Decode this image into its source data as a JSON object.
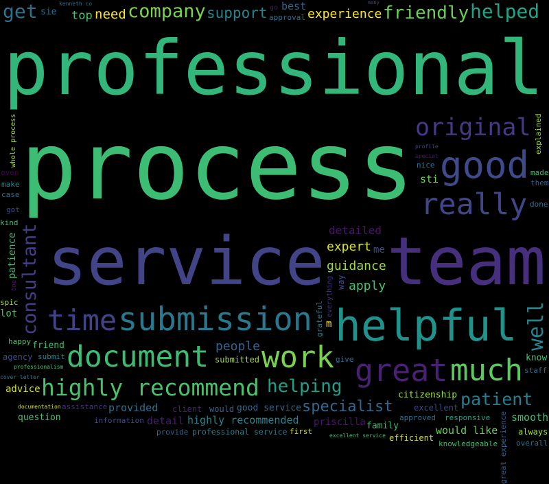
{
  "background": "#000000",
  "words": [
    {
      "text": "professional",
      "color": "#32b67a"
    },
    {
      "text": "process",
      "color": "#3dbc74"
    },
    {
      "text": "service",
      "color": "#414487"
    },
    {
      "text": "team",
      "color": "#46307e"
    },
    {
      "text": "helpful",
      "color": "#21918c"
    },
    {
      "text": "submission",
      "color": "#2a788e"
    },
    {
      "text": "original",
      "color": "#443983"
    },
    {
      "text": "good",
      "color": "#3e4a89"
    },
    {
      "text": "much",
      "color": "#5ec962"
    },
    {
      "text": "work",
      "color": "#7ad151"
    },
    {
      "text": "document",
      "color": "#3dbc74"
    },
    {
      "text": "highly recommend",
      "color": "#4ac16d"
    },
    {
      "text": "time",
      "color": "#414487"
    },
    {
      "text": "really",
      "color": "#404688"
    },
    {
      "text": "great",
      "color": "#482173"
    },
    {
      "text": "company",
      "color": "#7ad151"
    },
    {
      "text": "helped",
      "color": "#20a386"
    },
    {
      "text": "get",
      "color": "#2c728e"
    },
    {
      "text": "need",
      "color": "#fde725"
    },
    {
      "text": "friendly",
      "color": "#6ccd5a"
    },
    {
      "text": "experience",
      "color": "#fde725"
    },
    {
      "text": "well",
      "color": "#25848e"
    },
    {
      "text": "consultant",
      "color": "#433e85"
    },
    {
      "text": "support",
      "color": "#25848e"
    },
    {
      "text": "helping",
      "color": "#1fa088"
    },
    {
      "text": "detailed",
      "color": "#481668"
    },
    {
      "text": "expert",
      "color": "#d8e219"
    },
    {
      "text": "guidance",
      "color": "#a0da39"
    },
    {
      "text": "specialist",
      "color": "#31688e"
    },
    {
      "text": "patient",
      "color": "#287d8e"
    },
    {
      "text": "apply",
      "color": "#4ac16d"
    },
    {
      "text": "smooth",
      "color": "#3dbc74"
    },
    {
      "text": "top",
      "color": "#4ac16d"
    },
    {
      "text": "citizenship",
      "color": "#a0da39"
    },
    {
      "text": "good service",
      "color": "#31688e"
    },
    {
      "text": "people",
      "color": "#33638d"
    },
    {
      "text": "submitted",
      "color": "#a0da39"
    },
    {
      "text": "approval",
      "color": "#2c728e"
    },
    {
      "text": "best",
      "color": "#33638d"
    },
    {
      "text": "profile",
      "color": "#3e4989"
    },
    {
      "text": "many",
      "color": "#3e4989"
    },
    {
      "text": "explained",
      "color": "#a0da39"
    },
    {
      "text": "great experience",
      "color": "#33638d"
    },
    {
      "text": "made",
      "color": "#3dbc74"
    },
    {
      "text": "excellent",
      "color": "#3e4989"
    },
    {
      "text": "everything",
      "color": "#443983"
    },
    {
      "text": "special",
      "color": "#481c6e"
    },
    {
      "text": "kenneth co",
      "color": "#2c728e"
    },
    {
      "text": "friend",
      "color": "#3dbc74"
    },
    {
      "text": "sie",
      "color": "#2c728e"
    },
    {
      "text": "submit",
      "color": "#25848e"
    },
    {
      "text": "provided",
      "color": "#2c728e"
    },
    {
      "text": "highly recommended",
      "color": "#25848e"
    },
    {
      "text": "whole process",
      "color": "#a0da39"
    },
    {
      "text": "even",
      "color": "#440154"
    },
    {
      "text": "make",
      "color": "#25848e"
    },
    {
      "text": "grateful",
      "color": "#287d8e"
    },
    {
      "text": "professionalism",
      "color": "#4ac16d"
    },
    {
      "text": "assistance",
      "color": "#472d7b"
    },
    {
      "text": "case",
      "color": "#2c728e"
    },
    {
      "text": "happy",
      "color": "#4ac16d"
    },
    {
      "text": "go",
      "color": "#481668"
    },
    {
      "text": "would",
      "color": "#33638d"
    },
    {
      "text": "cover letter",
      "color": "#287d8e"
    },
    {
      "text": "got",
      "color": "#3e4989"
    },
    {
      "text": "advice",
      "color": "#d8e219"
    },
    {
      "text": "detail",
      "color": "#481c6e"
    },
    {
      "text": "documentation",
      "color": "#d8e219"
    },
    {
      "text": "way",
      "color": "#3e4989"
    },
    {
      "text": "client",
      "color": "#482173"
    },
    {
      "text": "m",
      "color": "#fde725"
    },
    {
      "text": "information",
      "color": "#3e4989"
    },
    {
      "text": "kind",
      "color": "#3dbc74"
    },
    {
      "text": "patience",
      "color": "#3dbc74"
    },
    {
      "text": "one",
      "color": "#481668"
    },
    {
      "text": "spic",
      "color": "#a0da39"
    },
    {
      "text": "give",
      "color": "#2c728e"
    },
    {
      "text": "agency",
      "color": "#3e4989"
    },
    {
      "text": "provide",
      "color": "#33638d"
    },
    {
      "text": "lot",
      "color": "#4ac16d"
    },
    {
      "text": "question",
      "color": "#4ac16d"
    },
    {
      "text": "professional service",
      "color": "#287d8e"
    },
    {
      "text": "priscilla",
      "color": "#481668"
    },
    {
      "text": "nice",
      "color": "#2c728e"
    },
    {
      "text": "responsive",
      "color": "#20a386"
    },
    {
      "text": "sti",
      "color": "#6ccd5a"
    },
    {
      "text": "know",
      "color": "#4ac16d"
    },
    {
      "text": "staff",
      "color": "#2c728e"
    },
    {
      "text": "them",
      "color": "#33638d"
    },
    {
      "text": "approved",
      "color": "#2c728e"
    },
    {
      "text": "would like",
      "color": "#6ccd5a"
    },
    {
      "text": "knowledgeable",
      "color": "#3dbc74"
    },
    {
      "text": "done",
      "color": "#2c728e"
    },
    {
      "text": "family",
      "color": "#3dbc74"
    },
    {
      "text": "always",
      "color": "#a0da39"
    },
    {
      "text": "first",
      "color": "#d8e219"
    },
    {
      "text": "me",
      "color": "#3e4989"
    },
    {
      "text": "excellent service",
      "color": "#3dbc74"
    },
    {
      "text": "efficient",
      "color": "#d8e219"
    },
    {
      "text": "overall",
      "color": "#2c728e"
    }
  ]
}
